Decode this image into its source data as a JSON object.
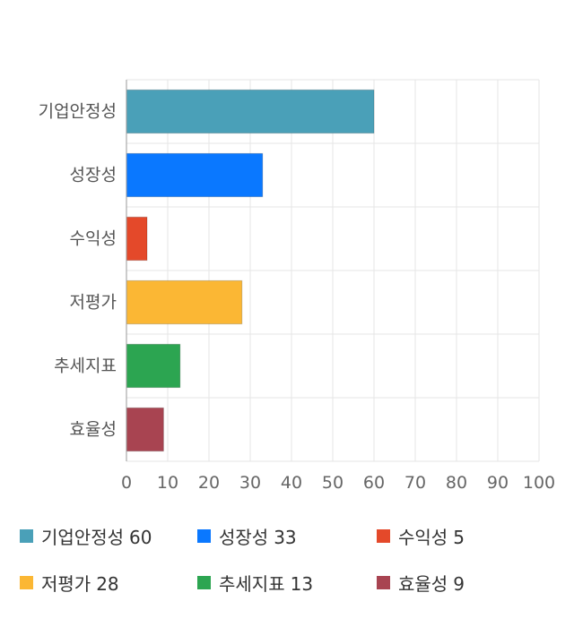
{
  "chart_data": {
    "type": "bar",
    "orientation": "horizontal",
    "categories": [
      "기업안정성",
      "성장성",
      "수익성",
      "저평가",
      "추세지표",
      "효율성"
    ],
    "values": [
      60,
      33,
      5,
      28,
      13,
      9
    ],
    "colors": [
      "#4aa0b8",
      "#0a78ff",
      "#e4492a",
      "#fbb734",
      "#2ca551",
      "#a84451"
    ],
    "xlim": [
      0,
      100
    ],
    "xticks": [
      0,
      10,
      20,
      30,
      40,
      50,
      60,
      70,
      80,
      90,
      100
    ],
    "grid": true,
    "legend_position": "bottom"
  },
  "legend": {
    "items": [
      {
        "label": "기업안정성",
        "value": "60",
        "color": "#4aa0b8"
      },
      {
        "label": "성장성",
        "value": "33",
        "color": "#0a78ff"
      },
      {
        "label": "수익성",
        "value": "5",
        "color": "#e4492a"
      },
      {
        "label": "저평가",
        "value": "28",
        "color": "#fbb734"
      },
      {
        "label": "추세지표",
        "value": "13",
        "color": "#2ca551"
      },
      {
        "label": "효율성",
        "value": "9",
        "color": "#a84451"
      }
    ]
  }
}
